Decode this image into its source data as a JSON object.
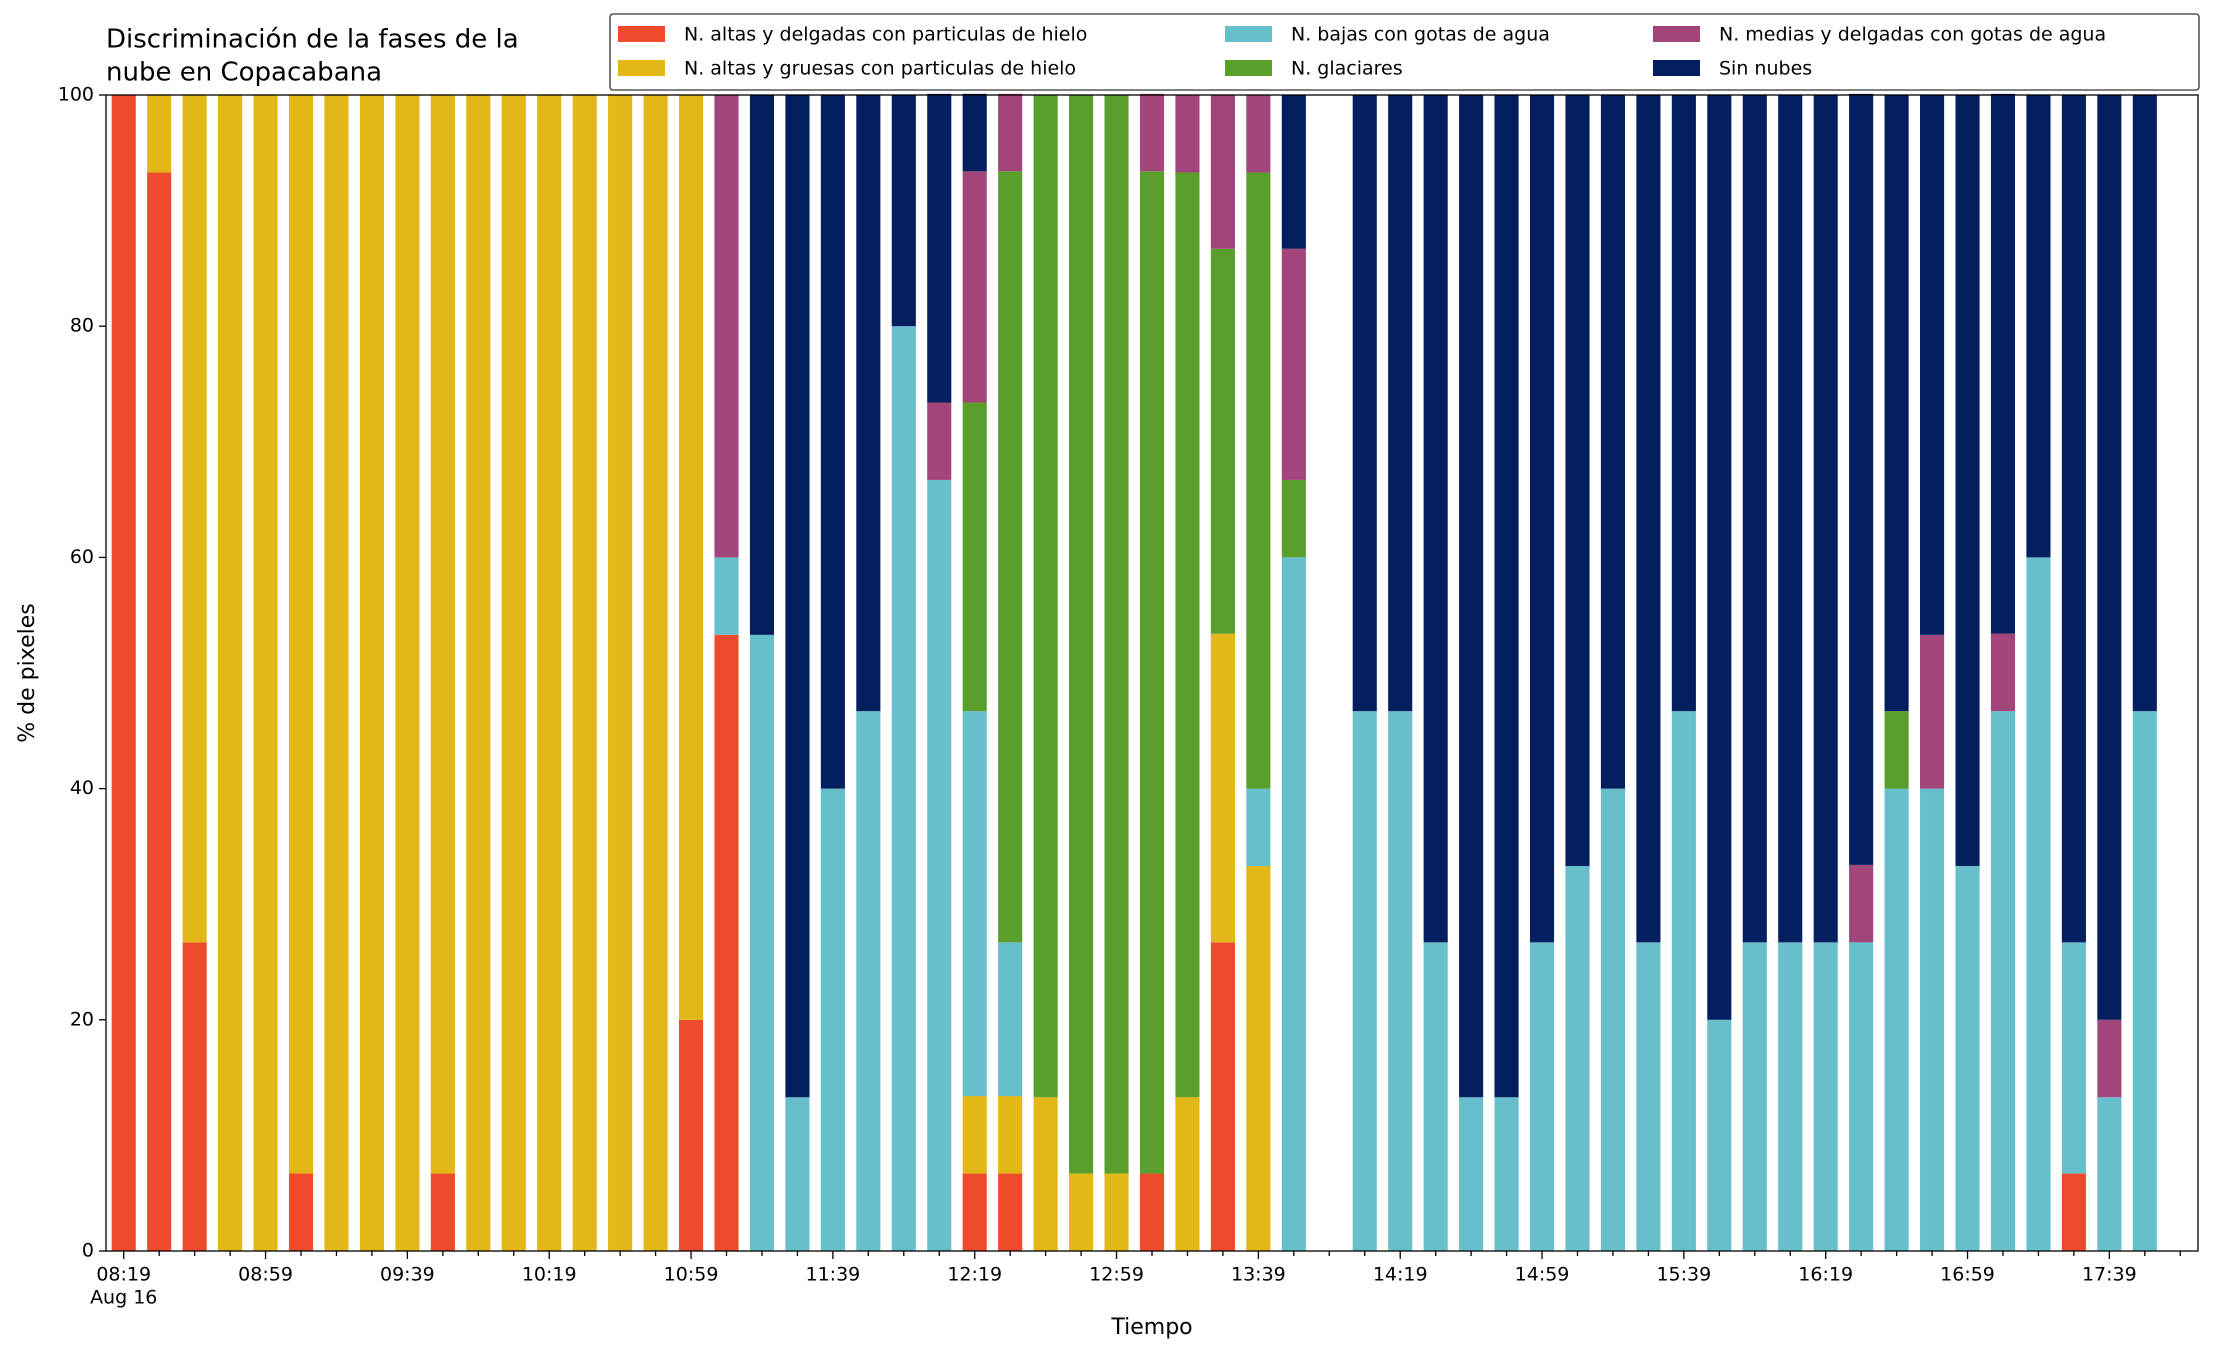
{
  "chart_data": {
    "type": "stacked_bar",
    "title": [
      "Discriminación de la fases de la",
      "nube en Copacabana"
    ],
    "xlabel": "Tiempo",
    "ylabel": "% de pixeles",
    "categories": [
      "08:19",
      null,
      null,
      null,
      "08:59",
      null,
      null,
      null,
      "09:39",
      null,
      null,
      null,
      "10:19",
      null,
      null,
      null,
      "10:59",
      null,
      null,
      null,
      "11:39",
      null,
      null,
      null,
      "12:19",
      null,
      null,
      null,
      "12:59",
      null,
      null,
      null,
      "13:39",
      null,
      null,
      null,
      "14:19",
      null,
      null,
      null,
      "14:59",
      null,
      null,
      null,
      "15:39",
      null,
      null,
      null,
      "16:19",
      null,
      null,
      null,
      "16:59",
      null,
      null,
      null,
      "17:39",
      null,
      null
    ],
    "x_sublabel": "Aug 16",
    "ylim": [
      0,
      100
    ],
    "yticks": [
      0,
      20,
      40,
      60,
      80,
      100
    ],
    "legend": "top-right",
    "legend_columns": 3,
    "series": [
      {
        "name": "N. altas y delgadas con particulas de hielo",
        "color": "#ee4a2c",
        "values": [
          100,
          93.3,
          26.7,
          0,
          0,
          6.7,
          0,
          0,
          0,
          6.7,
          0,
          0,
          0,
          0,
          0,
          0,
          20,
          53.3,
          0,
          0,
          0,
          0,
          0,
          0,
          6.7,
          6.7,
          0,
          0,
          0,
          6.7,
          0,
          26.7,
          0,
          0,
          null,
          0,
          0,
          0,
          0,
          0,
          0,
          0,
          0,
          0,
          0,
          0,
          0,
          0,
          0,
          0,
          0,
          0,
          0,
          0,
          0,
          6.7,
          0,
          0,
          null
        ]
      },
      {
        "name": "N. altas y gruesas con particulas de hielo",
        "color": "#e3b717",
        "values": [
          0,
          6.7,
          73.3,
          100,
          100,
          93.3,
          100,
          100,
          100,
          93.3,
          100,
          100,
          100,
          100,
          100,
          100,
          80,
          0,
          0,
          0,
          0,
          0,
          0,
          0,
          6.7,
          6.7,
          13.3,
          6.7,
          6.7,
          0,
          13.3,
          26.7,
          33.3,
          0,
          null,
          0,
          0,
          0,
          0,
          0,
          0,
          0,
          0,
          0,
          0,
          0,
          0,
          0,
          0,
          0,
          0,
          0,
          0,
          0,
          0,
          0,
          0,
          0,
          null
        ]
      },
      {
        "name": "N. bajas con gotas de agua",
        "color": "#67bfcb",
        "values": [
          0,
          0,
          0,
          0,
          0,
          0,
          0,
          0,
          0,
          0,
          0,
          0,
          0,
          0,
          0,
          0,
          0,
          6.7,
          53.3,
          13.3,
          40,
          46.7,
          80,
          66.7,
          33.3,
          13.3,
          0,
          0,
          0,
          0,
          0,
          0,
          6.7,
          60,
          null,
          46.7,
          46.7,
          26.7,
          13.3,
          13.3,
          26.7,
          33.3,
          40,
          26.7,
          46.7,
          20,
          26.7,
          26.7,
          26.7,
          26.7,
          40,
          40,
          33.3,
          46.7,
          60,
          20,
          13.3,
          46.7,
          null
        ]
      },
      {
        "name": "N. glaciares",
        "color": "#5a9e2c",
        "values": [
          0,
          0,
          0,
          0,
          0,
          0,
          0,
          0,
          0,
          0,
          0,
          0,
          0,
          0,
          0,
          0,
          0,
          0,
          0,
          0,
          0,
          0,
          0,
          0,
          26.7,
          66.7,
          86.7,
          93.3,
          93.3,
          86.7,
          80,
          33.3,
          53.3,
          6.7,
          null,
          0,
          0,
          0,
          0,
          0,
          0,
          0,
          0,
          0,
          0,
          0,
          0,
          0,
          0,
          0,
          6.7,
          0,
          0,
          0,
          0,
          0,
          0,
          0,
          null
        ]
      },
      {
        "name": "N. medias y delgadas con gotas de agua",
        "color": "#a2457a",
        "values": [
          0,
          0,
          0,
          0,
          0,
          0,
          0,
          0,
          0,
          0,
          0,
          0,
          0,
          0,
          0,
          0,
          0,
          40,
          0,
          0,
          0,
          0,
          0,
          6.7,
          20,
          6.7,
          0,
          0,
          0,
          6.7,
          6.7,
          13.3,
          6.7,
          20,
          null,
          0,
          0,
          0,
          0,
          0,
          0,
          0,
          0,
          0,
          0,
          0,
          0,
          0,
          0,
          6.7,
          0,
          13.3,
          0,
          6.7,
          0,
          0,
          6.7,
          0,
          null
        ]
      },
      {
        "name": "Sin nubes",
        "color": "#041f5f",
        "values": [
          0,
          0,
          0,
          0,
          0,
          0,
          0,
          0,
          0,
          0,
          0,
          0,
          0,
          0,
          0,
          0,
          0,
          0,
          46.7,
          86.7,
          60,
          53.3,
          20,
          26.7,
          6.7,
          0,
          0,
          0,
          0,
          0,
          0,
          0,
          0,
          13.3,
          null,
          53.3,
          53.3,
          73.3,
          86.7,
          86.7,
          73.3,
          66.7,
          60,
          73.3,
          53.3,
          80,
          73.3,
          73.3,
          73.3,
          66.7,
          53.3,
          46.7,
          66.7,
          46.7,
          40,
          73.3,
          80,
          53.3,
          null
        ]
      }
    ]
  }
}
